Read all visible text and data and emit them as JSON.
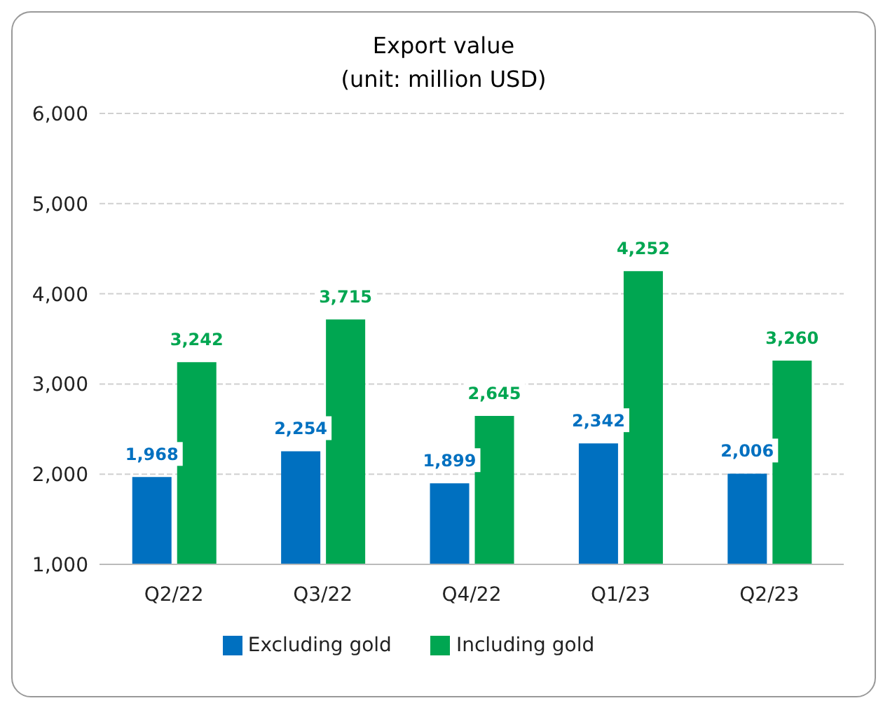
{
  "chart_data": {
    "type": "bar",
    "title": "Export value",
    "subtitle": "(unit: million USD)",
    "categories": [
      "Q2/22",
      "Q3/22",
      "Q4/22",
      "Q1/23",
      "Q2/23"
    ],
    "series": [
      {
        "name": "Excluding gold",
        "color": "#0070c0",
        "values": [
          1968,
          2254,
          1899,
          2342,
          2006
        ],
        "value_labels": [
          "1,968",
          "2,254",
          "1,899",
          "2,342",
          "2,006"
        ]
      },
      {
        "name": "Including gold",
        "color": "#00a651",
        "values": [
          3242,
          3715,
          2645,
          4252,
          3260
        ],
        "value_labels": [
          "3,242",
          "3,715",
          "2,645",
          "4,252",
          "3,260"
        ]
      }
    ],
    "ylim": [
      1000,
      6000
    ],
    "yticks": [
      {
        "value": 1000,
        "label": "1,000"
      },
      {
        "value": 2000,
        "label": "2,000"
      },
      {
        "value": 3000,
        "label": "3,000"
      },
      {
        "value": 4000,
        "label": "4,000"
      },
      {
        "value": 5000,
        "label": "5,000"
      },
      {
        "value": 6000,
        "label": "6,000"
      }
    ],
    "grid": "y",
    "legend": "bottom"
  }
}
